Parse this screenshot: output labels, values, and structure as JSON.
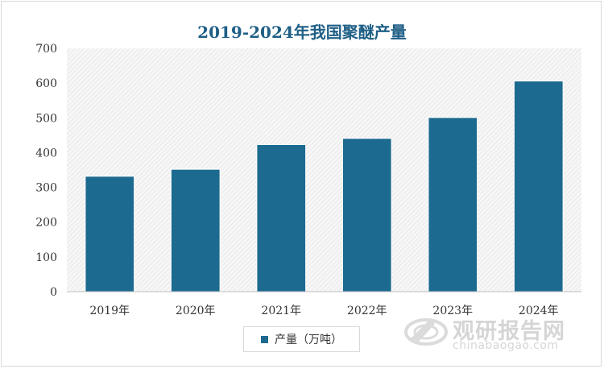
{
  "chart_data": {
    "type": "bar",
    "title": "2019-2024年我国聚醚产量",
    "categories": [
      "2019年",
      "2020年",
      "2021年",
      "2022年",
      "2023年",
      "2024年"
    ],
    "series": [
      {
        "name": "产量（万吨）",
        "values": [
          332,
          352,
          423,
          441,
          501,
          606
        ]
      }
    ],
    "ylim": [
      0,
      700
    ],
    "yticks": [
      "0",
      "100",
      "200",
      "300",
      "400",
      "500",
      "600",
      "700"
    ],
    "xlabel": "",
    "ylabel": "",
    "grid": false,
    "legend_position": "bottom",
    "bar_color": "#1c6a8f"
  },
  "watermark": {
    "name_cn": "观研报告网",
    "url": "chinabaogao.com"
  }
}
